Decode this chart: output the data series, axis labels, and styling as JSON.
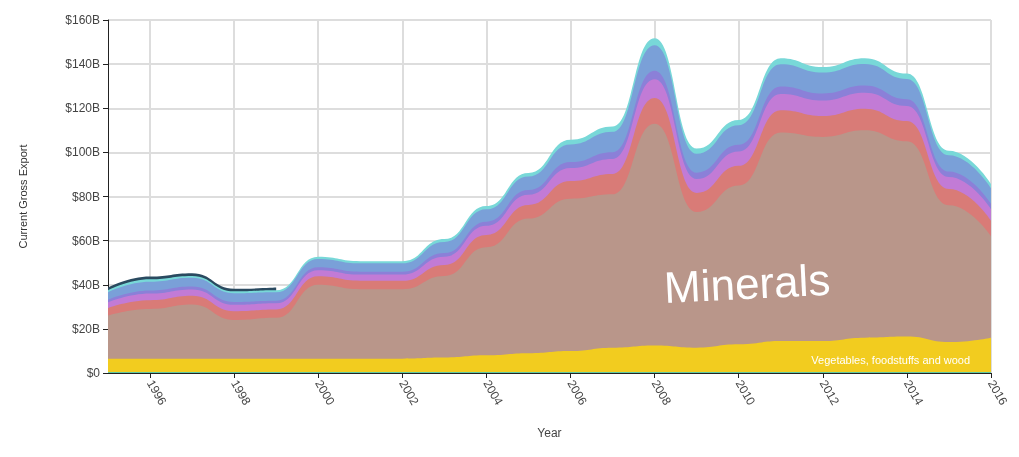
{
  "chart_data": {
    "type": "area",
    "stacked": true,
    "xlabel": "Year",
    "ylabel": "Current Gross Export",
    "grid": true,
    "legend": false,
    "x": [
      1995,
      1996,
      1997,
      1998,
      1999,
      2000,
      2001,
      2002,
      2003,
      2004,
      2005,
      2006,
      2007,
      2008,
      2009,
      2010,
      2011,
      2012,
      2013,
      2014,
      2015,
      2016
    ],
    "xlim": [
      1995,
      2016
    ],
    "xticks": [
      1996,
      1998,
      2000,
      2002,
      2004,
      2006,
      2008,
      2010,
      2012,
      2014,
      2016
    ],
    "ylim": [
      0,
      160
    ],
    "yticks": [
      {
        "value": 0,
        "label": "$0"
      },
      {
        "value": 20,
        "label": "$20B"
      },
      {
        "value": 40,
        "label": "$40B"
      },
      {
        "value": 60,
        "label": "$60B"
      },
      {
        "value": 80,
        "label": "$80B"
      },
      {
        "value": 100,
        "label": "$100B"
      },
      {
        "value": 120,
        "label": "$120B"
      },
      {
        "value": 140,
        "label": "$140B"
      },
      {
        "value": 160,
        "label": "$160B"
      }
    ],
    "series": [
      {
        "color": "#5fc9a0",
        "values": [
          0.5,
          0.5,
          0.5,
          0.5,
          0.5,
          0.5,
          0.5,
          0.5,
          0.5,
          0.5,
          0.5,
          0.5,
          0.5,
          0.5,
          0.5,
          0.5,
          0.5,
          0.5,
          0.5,
          0.5,
          0.5,
          0.5
        ]
      },
      {
        "name": "Vegetables, foodstuffs and wood",
        "color": "#f2cc1f",
        "values": [
          6,
          6,
          6,
          6,
          6,
          6,
          6,
          6,
          6.5,
          7.5,
          8.5,
          9.5,
          11,
          12,
          11,
          12.5,
          14,
          14,
          15.5,
          16,
          13.5,
          15.5
        ]
      },
      {
        "name": "Minerals",
        "color": "#b9968a",
        "values": [
          19.5,
          22.5,
          24.5,
          17.5,
          18.5,
          33.5,
          31.5,
          31.5,
          37,
          49,
          61,
          69,
          69.5,
          100.5,
          61.5,
          72,
          94.5,
          92.5,
          94,
          88.5,
          62,
          46
        ]
      },
      {
        "color": "#d97b77",
        "values": [
          3.5,
          4,
          4,
          4,
          3.8,
          3.8,
          3.8,
          3.8,
          5,
          5.6,
          6.2,
          8,
          9.2,
          11.6,
          8.6,
          8.9,
          10.1,
          9.5,
          9.8,
          9.2,
          7.4,
          7.1
        ]
      },
      {
        "color": "#c27bd6",
        "values": [
          2.5,
          3,
          2.9,
          2.9,
          2.8,
          2.8,
          2.8,
          2.8,
          3.7,
          4.1,
          4.6,
          5.9,
          6.8,
          8.5,
          6.3,
          6.5,
          7.4,
          7,
          7.2,
          6.8,
          5.4,
          5.2
        ]
      },
      {
        "color": "#8b80d8",
        "values": [
          1.2,
          1.4,
          1.3,
          1.3,
          1.2,
          1.3,
          1.3,
          1.3,
          1.7,
          1.9,
          2.1,
          2.7,
          3.1,
          3.9,
          2.9,
          3,
          3.4,
          3.2,
          3.3,
          3.1,
          2.5,
          2.4
        ]
      },
      {
        "color": "#7aa0d8",
        "values": [
          3.5,
          4,
          4,
          4,
          3.8,
          3.8,
          3.8,
          3.8,
          5,
          5.6,
          6.2,
          8,
          9.2,
          11.6,
          8.6,
          8.9,
          10.1,
          9.5,
          9.8,
          9.2,
          7.4,
          7.1
        ]
      },
      {
        "color": "#78d8d8",
        "values": [
          0.8,
          1.1,
          0.8,
          0.8,
          0.9,
          1,
          1,
          1,
          1.3,
          1.5,
          1.6,
          2.1,
          2.4,
          3.1,
          2.3,
          2.4,
          2.7,
          2.5,
          2.6,
          2.4,
          2,
          1.9
        ]
      },
      {
        "color": "#2a4a60",
        "values": [
          1.2,
          1.2,
          1.2,
          1.2,
          1.2,
          null,
          null,
          null,
          null,
          null,
          null,
          null,
          null,
          null,
          null,
          null,
          null,
          null,
          null,
          null,
          null,
          null
        ]
      }
    ]
  }
}
